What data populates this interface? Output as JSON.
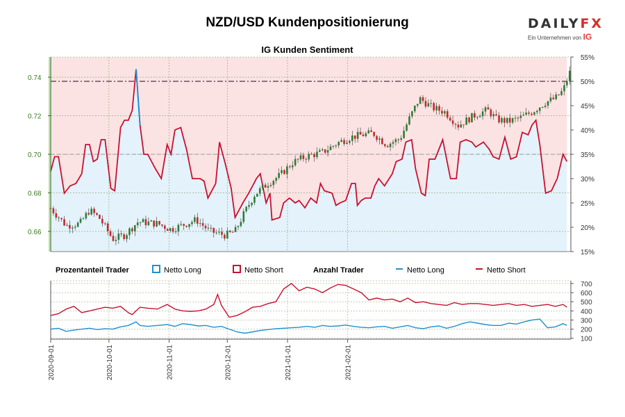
{
  "header": {
    "title": "NZD/USD Kundenpositionierung",
    "subtitle": "IG Kunden Sentiment"
  },
  "logo": {
    "wordmark_left": "DAILY",
    "wordmark_right": "FX",
    "tagline": "Ein Unternehmen von",
    "tagline_brand": "IG"
  },
  "legend": {
    "percent_heading": "Prozentanteil Trader",
    "count_heading": "Anzahl Trader",
    "net_long": "Netto Long",
    "net_short": "Netto Short"
  },
  "colors": {
    "long": "#1e90d0",
    "short": "#c8102e",
    "long_area": "#e4f2fb",
    "short_area": "#fbe3e4",
    "candle_up": "#2e7d32",
    "candle_down": "#c62828",
    "grid": "#8a9a6a",
    "axis_left": "#3a7a1a"
  },
  "chart_data": [
    {
      "type": "candlestick",
      "left_axis": {
        "ticks": [
          0.66,
          0.68,
          0.7,
          0.72,
          0.74
        ],
        "range": [
          0.6495,
          0.7505
        ]
      },
      "right_axis": {
        "ticks": [
          "15%",
          "20%",
          "25%",
          "30%",
          "35%",
          "40%",
          "45%",
          "50%",
          "55%"
        ],
        "range": [
          15,
          55
        ]
      },
      "reference_levels": {
        "fifty_percent": 50,
        "dash_level": 35
      },
      "dates": [
        "2020-09-01",
        "2020-10-01",
        "2020-11-01",
        "2020-12-01",
        "2021-01-01",
        "2021-02-01"
      ],
      "price_path": [
        [
          0,
          0.672
        ],
        [
          8,
          0.663
        ],
        [
          15,
          0.664
        ],
        [
          20,
          0.671
        ],
        [
          25,
          0.667
        ],
        [
          32,
          0.656
        ],
        [
          38,
          0.658
        ],
        [
          45,
          0.665
        ],
        [
          55,
          0.664
        ],
        [
          62,
          0.661
        ],
        [
          70,
          0.664
        ],
        [
          75,
          0.666
        ],
        [
          82,
          0.66
        ],
        [
          90,
          0.658
        ],
        [
          95,
          0.66
        ],
        [
          100,
          0.67
        ],
        [
          105,
          0.679
        ],
        [
          112,
          0.685
        ],
        [
          118,
          0.689
        ],
        [
          125,
          0.696
        ],
        [
          132,
          0.699
        ],
        [
          140,
          0.701
        ],
        [
          148,
          0.706
        ],
        [
          155,
          0.709
        ],
        [
          160,
          0.71
        ],
        [
          166,
          0.711
        ],
        [
          173,
          0.705
        ],
        [
          180,
          0.708
        ],
        [
          185,
          0.719
        ],
        [
          190,
          0.729
        ],
        [
          197,
          0.724
        ],
        [
          203,
          0.722
        ],
        [
          210,
          0.715
        ],
        [
          218,
          0.72
        ],
        [
          225,
          0.723
        ],
        [
          230,
          0.718
        ],
        [
          236,
          0.717
        ],
        [
          242,
          0.719
        ],
        [
          248,
          0.722
        ],
        [
          255,
          0.727
        ],
        [
          260,
          0.729
        ],
        [
          264,
          0.733
        ],
        [
          268,
          0.744
        ]
      ],
      "long_pct_path": [
        [
          0,
          31.5
        ],
        [
          2,
          34.5
        ],
        [
          4,
          34.5
        ],
        [
          7,
          27
        ],
        [
          10,
          28.5
        ],
        [
          13,
          29
        ],
        [
          16,
          31
        ],
        [
          18,
          37
        ],
        [
          20,
          37
        ],
        [
          22,
          33.5
        ],
        [
          24,
          34
        ],
        [
          26,
          38
        ],
        [
          28,
          38
        ],
        [
          31,
          28
        ],
        [
          33,
          27.5
        ],
        [
          36,
          40.5
        ],
        [
          38,
          42
        ],
        [
          40,
          42
        ],
        [
          42,
          44
        ],
        [
          44,
          52.5
        ],
        [
          46,
          41
        ],
        [
          48,
          35
        ],
        [
          50,
          35
        ],
        [
          54,
          32
        ],
        [
          57,
          30
        ],
        [
          60,
          37
        ],
        [
          62,
          35
        ],
        [
          64,
          40
        ],
        [
          67,
          40.5
        ],
        [
          70,
          36
        ],
        [
          73,
          30
        ],
        [
          77,
          30
        ],
        [
          79,
          29.5
        ],
        [
          81,
          26
        ],
        [
          85,
          29
        ],
        [
          87,
          37.5
        ],
        [
          90,
          33
        ],
        [
          93,
          28
        ],
        [
          95,
          22
        ],
        [
          99,
          25
        ],
        [
          102,
          27
        ],
        [
          106,
          30
        ],
        [
          108,
          31
        ],
        [
          111,
          25
        ],
        [
          113,
          27
        ],
        [
          114,
          21.5
        ],
        [
          118,
          22
        ],
        [
          120,
          25
        ],
        [
          123,
          26
        ],
        [
          126,
          25
        ],
        [
          128,
          25.5
        ],
        [
          131,
          24
        ],
        [
          134,
          26
        ],
        [
          137,
          25
        ],
        [
          139,
          29
        ],
        [
          141,
          27.5
        ],
        [
          145,
          27
        ],
        [
          147,
          24.5
        ],
        [
          149,
          25
        ],
        [
          152,
          25.5
        ],
        [
          155,
          29
        ],
        [
          157,
          29
        ],
        [
          158,
          24.5
        ],
        [
          160,
          25.5
        ],
        [
          162,
          26
        ],
        [
          165,
          26
        ],
        [
          167,
          28.5
        ],
        [
          169,
          30
        ],
        [
          172,
          28.5
        ],
        [
          176,
          31
        ],
        [
          178,
          33.5
        ],
        [
          181,
          34
        ],
        [
          183,
          37.5
        ],
        [
          186,
          38
        ],
        [
          188,
          32
        ],
        [
          191,
          27
        ],
        [
          193,
          26.5
        ],
        [
          195,
          34
        ],
        [
          198,
          34
        ],
        [
          200,
          36
        ],
        [
          202,
          38
        ],
        [
          206,
          30
        ],
        [
          209,
          30
        ],
        [
          211,
          37.5
        ],
        [
          214,
          38
        ],
        [
          217,
          37.5
        ],
        [
          219,
          36.5
        ],
        [
          223,
          37.5
        ],
        [
          226,
          36
        ],
        [
          228,
          34.5
        ],
        [
          231,
          34
        ],
        [
          234,
          38.5
        ],
        [
          237,
          34
        ],
        [
          240,
          34.5
        ],
        [
          243,
          39.5
        ],
        [
          246,
          39
        ],
        [
          248,
          41
        ],
        [
          250,
          42
        ],
        [
          252,
          37
        ],
        [
          255,
          27
        ],
        [
          258,
          27.5
        ],
        [
          261,
          30
        ],
        [
          264,
          35
        ],
        [
          266,
          33.5
        ]
      ],
      "short_pct_path": "100 minus long_pct_path"
    },
    {
      "type": "line",
      "y_axis": {
        "ticks": [
          100,
          200,
          300,
          400,
          500,
          600,
          700
        ],
        "range": [
          90,
          730
        ]
      },
      "series": [
        {
          "name": "Netto Long",
          "points": [
            [
              0,
              200
            ],
            [
              4,
              210
            ],
            [
              8,
              175
            ],
            [
              12,
              190
            ],
            [
              16,
              200
            ],
            [
              20,
              210
            ],
            [
              24,
              195
            ],
            [
              28,
              205
            ],
            [
              32,
              200
            ],
            [
              36,
              225
            ],
            [
              40,
              240
            ],
            [
              44,
              280
            ],
            [
              46,
              240
            ],
            [
              50,
              230
            ],
            [
              55,
              240
            ],
            [
              60,
              250
            ],
            [
              64,
              230
            ],
            [
              68,
              260
            ],
            [
              72,
              250
            ],
            [
              76,
              235
            ],
            [
              80,
              240
            ],
            [
              84,
              220
            ],
            [
              88,
              230
            ],
            [
              92,
              200
            ],
            [
              96,
              170
            ],
            [
              100,
              155
            ],
            [
              104,
              170
            ],
            [
              108,
              185
            ],
            [
              112,
              195
            ],
            [
              116,
              205
            ],
            [
              120,
              210
            ],
            [
              124,
              215
            ],
            [
              128,
              220
            ],
            [
              132,
              230
            ],
            [
              136,
              220
            ],
            [
              140,
              240
            ],
            [
              144,
              230
            ],
            [
              148,
              235
            ],
            [
              152,
              245
            ],
            [
              156,
              230
            ],
            [
              160,
              220
            ],
            [
              164,
              215
            ],
            [
              168,
              225
            ],
            [
              172,
              230
            ],
            [
              176,
              210
            ],
            [
              180,
              225
            ],
            [
              184,
              240
            ],
            [
              188,
              215
            ],
            [
              192,
              205
            ],
            [
              196,
              225
            ],
            [
              200,
              235
            ],
            [
              204,
              210
            ],
            [
              208,
              230
            ],
            [
              212,
              260
            ],
            [
              216,
              280
            ],
            [
              220,
              265
            ],
            [
              224,
              250
            ],
            [
              228,
              240
            ],
            [
              232,
              240
            ],
            [
              236,
              265
            ],
            [
              240,
              255
            ],
            [
              244,
              280
            ],
            [
              248,
              300
            ],
            [
              252,
              310
            ],
            [
              256,
              215
            ],
            [
              260,
              225
            ],
            [
              264,
              260
            ],
            [
              266,
              240
            ]
          ]
        },
        {
          "name": "Netto Short",
          "points": [
            [
              0,
              350
            ],
            [
              4,
              370
            ],
            [
              8,
              420
            ],
            [
              12,
              450
            ],
            [
              16,
              380
            ],
            [
              20,
              400
            ],
            [
              24,
              420
            ],
            [
              28,
              440
            ],
            [
              32,
              430
            ],
            [
              36,
              450
            ],
            [
              40,
              380
            ],
            [
              42,
              360
            ],
            [
              44,
              400
            ],
            [
              46,
              440
            ],
            [
              50,
              430
            ],
            [
              55,
              420
            ],
            [
              60,
              470
            ],
            [
              64,
              420
            ],
            [
              68,
              400
            ],
            [
              72,
              395
            ],
            [
              76,
              400
            ],
            [
              80,
              420
            ],
            [
              84,
              470
            ],
            [
              86,
              580
            ],
            [
              88,
              460
            ],
            [
              92,
              330
            ],
            [
              96,
              350
            ],
            [
              100,
              390
            ],
            [
              104,
              440
            ],
            [
              108,
              450
            ],
            [
              112,
              480
            ],
            [
              116,
              500
            ],
            [
              120,
              640
            ],
            [
              124,
              700
            ],
            [
              128,
              620
            ],
            [
              132,
              660
            ],
            [
              136,
              640
            ],
            [
              140,
              600
            ],
            [
              144,
              650
            ],
            [
              148,
              690
            ],
            [
              152,
              680
            ],
            [
              156,
              640
            ],
            [
              160,
              600
            ],
            [
              164,
              520
            ],
            [
              168,
              540
            ],
            [
              172,
              520
            ],
            [
              176,
              530
            ],
            [
              180,
              500
            ],
            [
              184,
              540
            ],
            [
              188,
              490
            ],
            [
              192,
              500
            ],
            [
              196,
              480
            ],
            [
              200,
              470
            ],
            [
              204,
              460
            ],
            [
              208,
              490
            ],
            [
              212,
              470
            ],
            [
              216,
              480
            ],
            [
              220,
              480
            ],
            [
              224,
              470
            ],
            [
              228,
              460
            ],
            [
              232,
              470
            ],
            [
              236,
              480
            ],
            [
              240,
              460
            ],
            [
              244,
              470
            ],
            [
              248,
              450
            ],
            [
              252,
              460
            ],
            [
              256,
              470
            ],
            [
              260,
              450
            ],
            [
              264,
              470
            ],
            [
              266,
              440
            ]
          ]
        }
      ]
    }
  ]
}
